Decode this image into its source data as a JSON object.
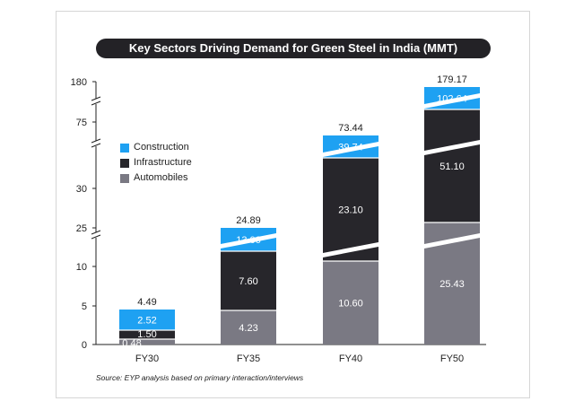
{
  "title": "Key Sectors Driving Demand for Green Steel in India (MMT)",
  "source": "Source: EYP analysis based on primary interaction/interviews",
  "colors": {
    "construction": "#1ea1f2",
    "infrastructure": "#27262b",
    "automobiles": "#7a7983",
    "title_bg": "#232226"
  },
  "legend": [
    {
      "name": "Construction",
      "color": "#1ea1f2"
    },
    {
      "name": "Infrastructure",
      "color": "#27262b"
    },
    {
      "name": "Automobiles",
      "color": "#7a7983"
    }
  ],
  "chart_data": {
    "type": "bar",
    "stacked": true,
    "broken_axis": true,
    "categories": [
      "FY30",
      "FY35",
      "FY40",
      "FY50"
    ],
    "series": [
      {
        "name": "Automobiles",
        "values": [
          0.48,
          4.23,
          10.6,
          25.43
        ]
      },
      {
        "name": "Infrastructure",
        "values": [
          1.5,
          7.6,
          23.1,
          51.1
        ]
      },
      {
        "name": "Construction",
        "values": [
          2.52,
          13.06,
          39.74,
          102.64
        ]
      }
    ],
    "totals": [
      "4.49",
      "24.89",
      "73.44",
      "179.17"
    ],
    "value_labels": [
      [
        "0.48",
        "1.50",
        "2.52"
      ],
      [
        "4.23",
        "7.60",
        "13.06"
      ],
      [
        "10.60",
        "23.10",
        "39.74"
      ],
      [
        "25.43",
        "51.10",
        "102.64"
      ]
    ],
    "y_ticks": [
      "0",
      "5",
      "10",
      "25",
      "30",
      "75",
      "180"
    ],
    "legend_position": "left"
  }
}
